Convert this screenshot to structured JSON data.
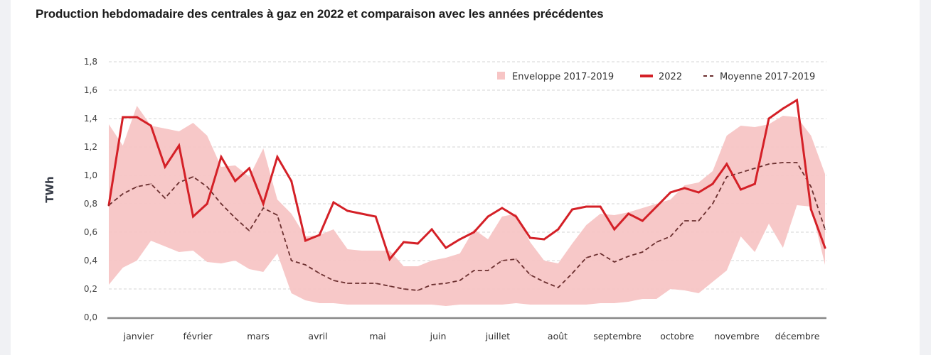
{
  "title": "Production hebdomadaire des centrales à gaz en 2022 et comparaison avec les années précédentes",
  "colors": {
    "line_2022": "#d42027",
    "envelope": "#f7c5c5",
    "average": "#6b2f2f",
    "grid": "#d6d6d6",
    "axis": "#888888",
    "background": "#f0f1f4"
  },
  "chart_data": {
    "type": "line",
    "title": "Production hebdomadaire des centrales à gaz en 2022 et comparaison avec les années précédentes",
    "xlabel": "",
    "ylabel": "TWh",
    "ylim": [
      0,
      1.8
    ],
    "yticks": [
      "0,0",
      "0,2",
      "0,4",
      "0,6",
      "0,8",
      "1,0",
      "1,2",
      "1,4",
      "1,6",
      "1,8"
    ],
    "ytick_values": [
      0,
      0.2,
      0.4,
      0.6,
      0.8,
      1.0,
      1.2,
      1.4,
      1.6,
      1.8
    ],
    "grid": true,
    "legend_position": "top-right",
    "months": [
      "janvier",
      "février",
      "mars",
      "avril",
      "mai",
      "juin",
      "juillet",
      "août",
      "septembre",
      "octobre",
      "novembre",
      "décembre"
    ],
    "x_weeks": [
      1,
      2,
      3,
      4,
      5,
      6,
      7,
      8,
      9,
      10,
      11,
      12,
      13,
      14,
      15,
      16,
      17,
      18,
      19,
      20,
      21,
      22,
      23,
      24,
      25,
      26,
      27,
      28,
      29,
      30,
      31,
      32,
      33,
      34,
      35,
      36,
      37,
      38,
      39,
      40,
      41,
      42,
      43,
      44,
      45,
      46,
      47,
      48,
      49,
      50,
      51,
      52
    ],
    "legend": [
      {
        "name": "Enveloppe 2017-2019",
        "kind": "area"
      },
      {
        "name": "2022",
        "kind": "line"
      },
      {
        "name": "Moyenne 2017-2019",
        "kind": "dashed"
      }
    ],
    "series": [
      {
        "name": "2022",
        "values": [
          0.79,
          1.41,
          1.41,
          1.35,
          1.06,
          1.21,
          0.71,
          0.8,
          1.13,
          0.96,
          1.05,
          0.8,
          1.13,
          0.96,
          0.54,
          0.58,
          0.81,
          0.75,
          0.73,
          0.71,
          0.41,
          0.53,
          0.52,
          0.62,
          0.49,
          0.55,
          0.6,
          0.71,
          0.77,
          0.71,
          0.56,
          0.55,
          0.62,
          0.76,
          0.78,
          0.78,
          0.62,
          0.73,
          0.68,
          0.78,
          0.88,
          0.91,
          0.88,
          0.94,
          1.08,
          0.9,
          0.94,
          1.4,
          1.47,
          1.53,
          0.76,
          0.49
        ]
      },
      {
        "name": "Moyenne 2017-2019",
        "values": [
          0.79,
          0.87,
          0.92,
          0.94,
          0.84,
          0.95,
          0.99,
          0.92,
          0.8,
          0.7,
          0.61,
          0.77,
          0.72,
          0.4,
          0.37,
          0.31,
          0.26,
          0.24,
          0.24,
          0.24,
          0.22,
          0.2,
          0.19,
          0.23,
          0.24,
          0.26,
          0.33,
          0.33,
          0.4,
          0.41,
          0.3,
          0.25,
          0.21,
          0.31,
          0.42,
          0.45,
          0.39,
          0.43,
          0.46,
          0.53,
          0.57,
          0.68,
          0.68,
          0.8,
          0.99,
          1.02,
          1.05,
          1.08,
          1.09,
          1.09,
          0.92,
          0.62
        ]
      },
      {
        "name": "Enveloppe 2017-2019 (max)",
        "values": [
          1.36,
          1.21,
          1.49,
          1.35,
          1.33,
          1.31,
          1.37,
          1.28,
          1.06,
          1.07,
          0.99,
          1.19,
          0.83,
          0.73,
          0.57,
          0.58,
          0.62,
          0.48,
          0.47,
          0.47,
          0.47,
          0.36,
          0.36,
          0.4,
          0.42,
          0.45,
          0.62,
          0.55,
          0.71,
          0.73,
          0.53,
          0.4,
          0.38,
          0.52,
          0.65,
          0.73,
          0.72,
          0.74,
          0.77,
          0.8,
          0.83,
          0.93,
          0.95,
          1.03,
          1.28,
          1.35,
          1.34,
          1.36,
          1.42,
          1.41,
          1.28,
          1.01
        ]
      },
      {
        "name": "Enveloppe 2017-2019 (min)",
        "values": [
          0.23,
          0.35,
          0.4,
          0.54,
          0.5,
          0.46,
          0.47,
          0.39,
          0.38,
          0.4,
          0.34,
          0.32,
          0.45,
          0.17,
          0.12,
          0.1,
          0.1,
          0.09,
          0.09,
          0.09,
          0.09,
          0.09,
          0.09,
          0.09,
          0.08,
          0.09,
          0.09,
          0.09,
          0.09,
          0.1,
          0.09,
          0.09,
          0.09,
          0.09,
          0.09,
          0.1,
          0.1,
          0.11,
          0.13,
          0.13,
          0.2,
          0.19,
          0.17,
          0.25,
          0.33,
          0.57,
          0.46,
          0.66,
          0.49,
          0.79,
          0.78,
          0.37
        ]
      }
    ]
  }
}
